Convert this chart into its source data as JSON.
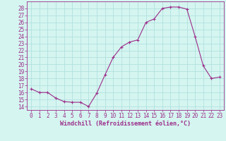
{
  "x": [
    0,
    1,
    2,
    3,
    4,
    5,
    6,
    7,
    8,
    9,
    10,
    11,
    12,
    13,
    14,
    15,
    16,
    17,
    18,
    19,
    20,
    21,
    22,
    23
  ],
  "y": [
    16.5,
    16.0,
    16.0,
    15.2,
    14.7,
    14.6,
    14.6,
    14.0,
    15.9,
    18.5,
    21.0,
    22.5,
    23.2,
    23.5,
    26.0,
    26.5,
    28.0,
    28.2,
    28.2,
    27.9,
    24.0,
    19.8,
    18.0,
    18.2
  ],
  "line_color": "#9b2d8a",
  "marker": "+",
  "marker_size": 3,
  "bg_color": "#d5f5f0",
  "grid_color": "#aadddd",
  "xlabel": "Windchill (Refroidissement éolien,°C)",
  "ylabel_ticks": [
    14,
    15,
    16,
    17,
    18,
    19,
    20,
    21,
    22,
    23,
    24,
    25,
    26,
    27,
    28
  ],
  "xlim": [
    -0.5,
    23.5
  ],
  "ylim": [
    13.5,
    29.0
  ],
  "xlabel_fontsize": 6,
  "tick_fontsize": 5.5
}
